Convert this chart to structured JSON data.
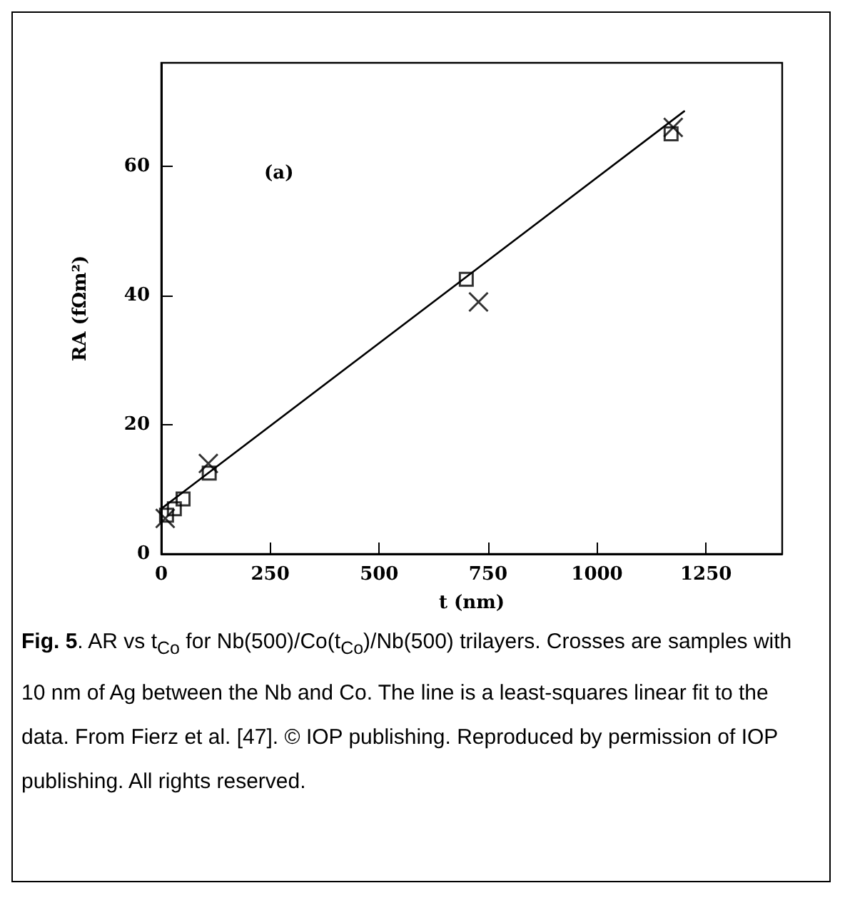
{
  "chart_data": {
    "type": "scatter",
    "xlabel": "t (nm)",
    "ylabel": "RA (fΩm²)",
    "xlim": [
      0,
      1425
    ],
    "ylim": [
      0,
      76
    ],
    "xticks": [
      0,
      250,
      500,
      750,
      1000,
      1250
    ],
    "yticks": [
      0,
      20,
      40,
      60
    ],
    "grid": false,
    "series": [
      {
        "marker": "square",
        "color": "#000000",
        "x": [
          12,
          30,
          50,
          110,
          700,
          1170
        ],
        "values": [
          6,
          7,
          8.5,
          12.5,
          42.5,
          65
        ]
      },
      {
        "marker": "cross",
        "color": "#000000",
        "x": [
          9,
          108,
          728,
          1175
        ],
        "values": [
          5.5,
          14,
          39,
          66
        ]
      },
      {
        "type": "line",
        "marker": "none",
        "color": "#000000",
        "x": [
          0,
          1200
        ],
        "values": [
          7,
          68.5
        ]
      }
    ],
    "annotations": [
      "(a)",
      "Fig. 5",
      ".  AR vs t$_{Co}$ for Nb(500)/Co(t$_{Co}$)/Nb(500) trilayers. Crosses are samples with 10 nm of Ag between the Nb and Co.   The  line is a least-squares linear fit to the data.  From Fierz et al. [47]. © IOP publishing.  Reproduced by permission of IOP publishing.  All rights reserved."
    ]
  }
}
